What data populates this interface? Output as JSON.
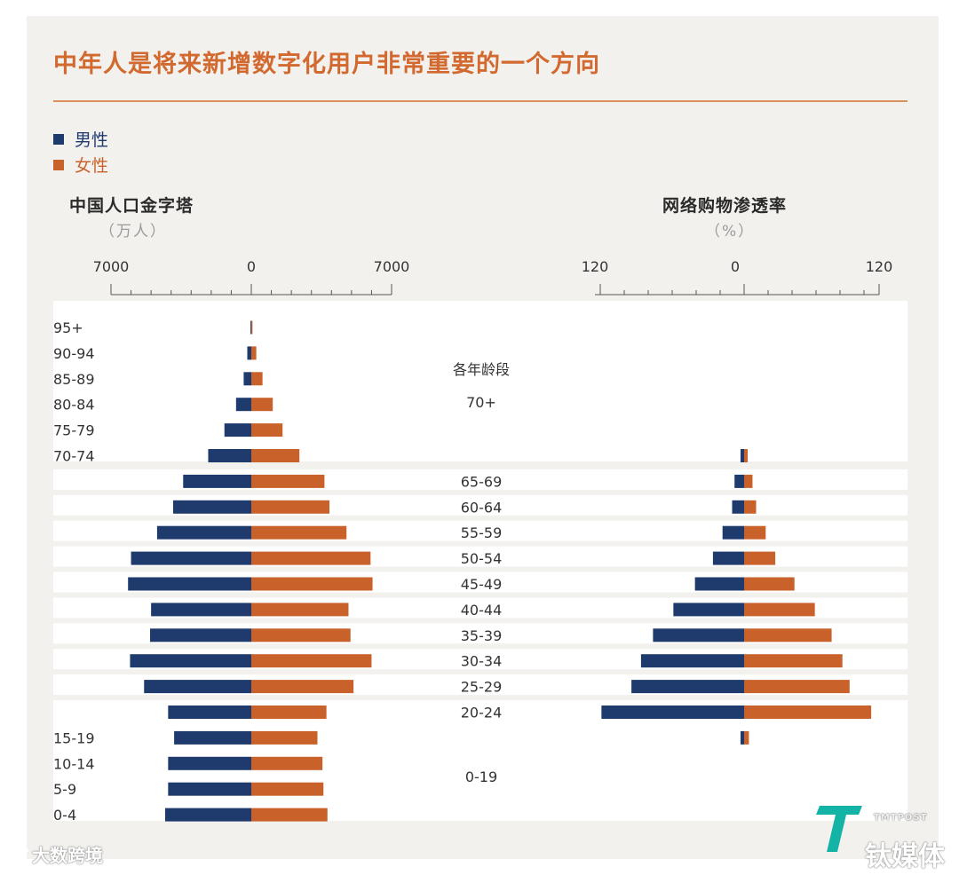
{
  "title": "中年人是将来新增数字化用户非常重要的一个方向",
  "legend": [
    {
      "label": "男性",
      "color": "#1f3b6e"
    },
    {
      "label": "女性",
      "color": "#c9622a"
    }
  ],
  "left_panel": {
    "title": "中国人口金字塔",
    "unit": "（万人）"
  },
  "right_panel": {
    "title": "网络购物渗透率",
    "unit": "（%）"
  },
  "middle_header": "各年龄段",
  "watermarks": {
    "bottom_left": "大数跨境",
    "bottom_right_main": "钛媒体",
    "bottom_right_small": "TMTPOST"
  },
  "chart_data": [
    {
      "type": "bar",
      "orientation": "horizontal",
      "title": "中国人口金字塔",
      "unit": "万人",
      "xlim": [
        -7000,
        7000
      ],
      "tick_labels": [
        "7000",
        "0",
        "7000"
      ],
      "categories": [
        "95+",
        "90-94",
        "85-89",
        "80-84",
        "75-79",
        "70-74",
        "65-69",
        "60-64",
        "55-59",
        "50-54",
        "45-49",
        "40-44",
        "35-39",
        "30-34",
        "25-29",
        "20-24",
        "15-19",
        "10-14",
        "5-9",
        "0-4"
      ],
      "series": [
        {
          "name": "男性",
          "values": [
            40,
            200,
            380,
            760,
            1340,
            2150,
            3400,
            3900,
            4700,
            6000,
            6150,
            5000,
            5050,
            6050,
            5350,
            4150,
            3850,
            4150,
            4150,
            4300
          ]
        },
        {
          "name": "女性",
          "values": [
            60,
            250,
            560,
            1070,
            1560,
            2400,
            3650,
            3900,
            4750,
            5950,
            6050,
            4850,
            4950,
            6000,
            5100,
            3750,
            3300,
            3550,
            3600,
            3800
          ]
        }
      ]
    },
    {
      "type": "bar",
      "orientation": "horizontal",
      "title": "网络购物渗透率",
      "unit": "%",
      "xlim": [
        -120,
        120
      ],
      "tick_labels": [
        "120",
        "0",
        "120"
      ],
      "categories": [
        "70+",
        "65-69",
        "60-64",
        "55-59",
        "50-54",
        "45-49",
        "40-44",
        "35-39",
        "30-34",
        "25-29",
        "20-24",
        "0-19"
      ],
      "middle_labels": [
        "70+",
        "65-69",
        "60-64",
        "55-59",
        "50-54",
        "45-49",
        "40-44",
        "35-39",
        "30-34",
        "25-29",
        "20-24",
        "0-19"
      ],
      "series": [
        {
          "name": "男性",
          "values": [
            3,
            8,
            10,
            18,
            26,
            41,
            59,
            76,
            86,
            94,
            119,
            3
          ]
        },
        {
          "name": "女性",
          "values": [
            3,
            7,
            10,
            18,
            26,
            42,
            59,
            73,
            82,
            88,
            106,
            4
          ]
        }
      ]
    }
  ]
}
